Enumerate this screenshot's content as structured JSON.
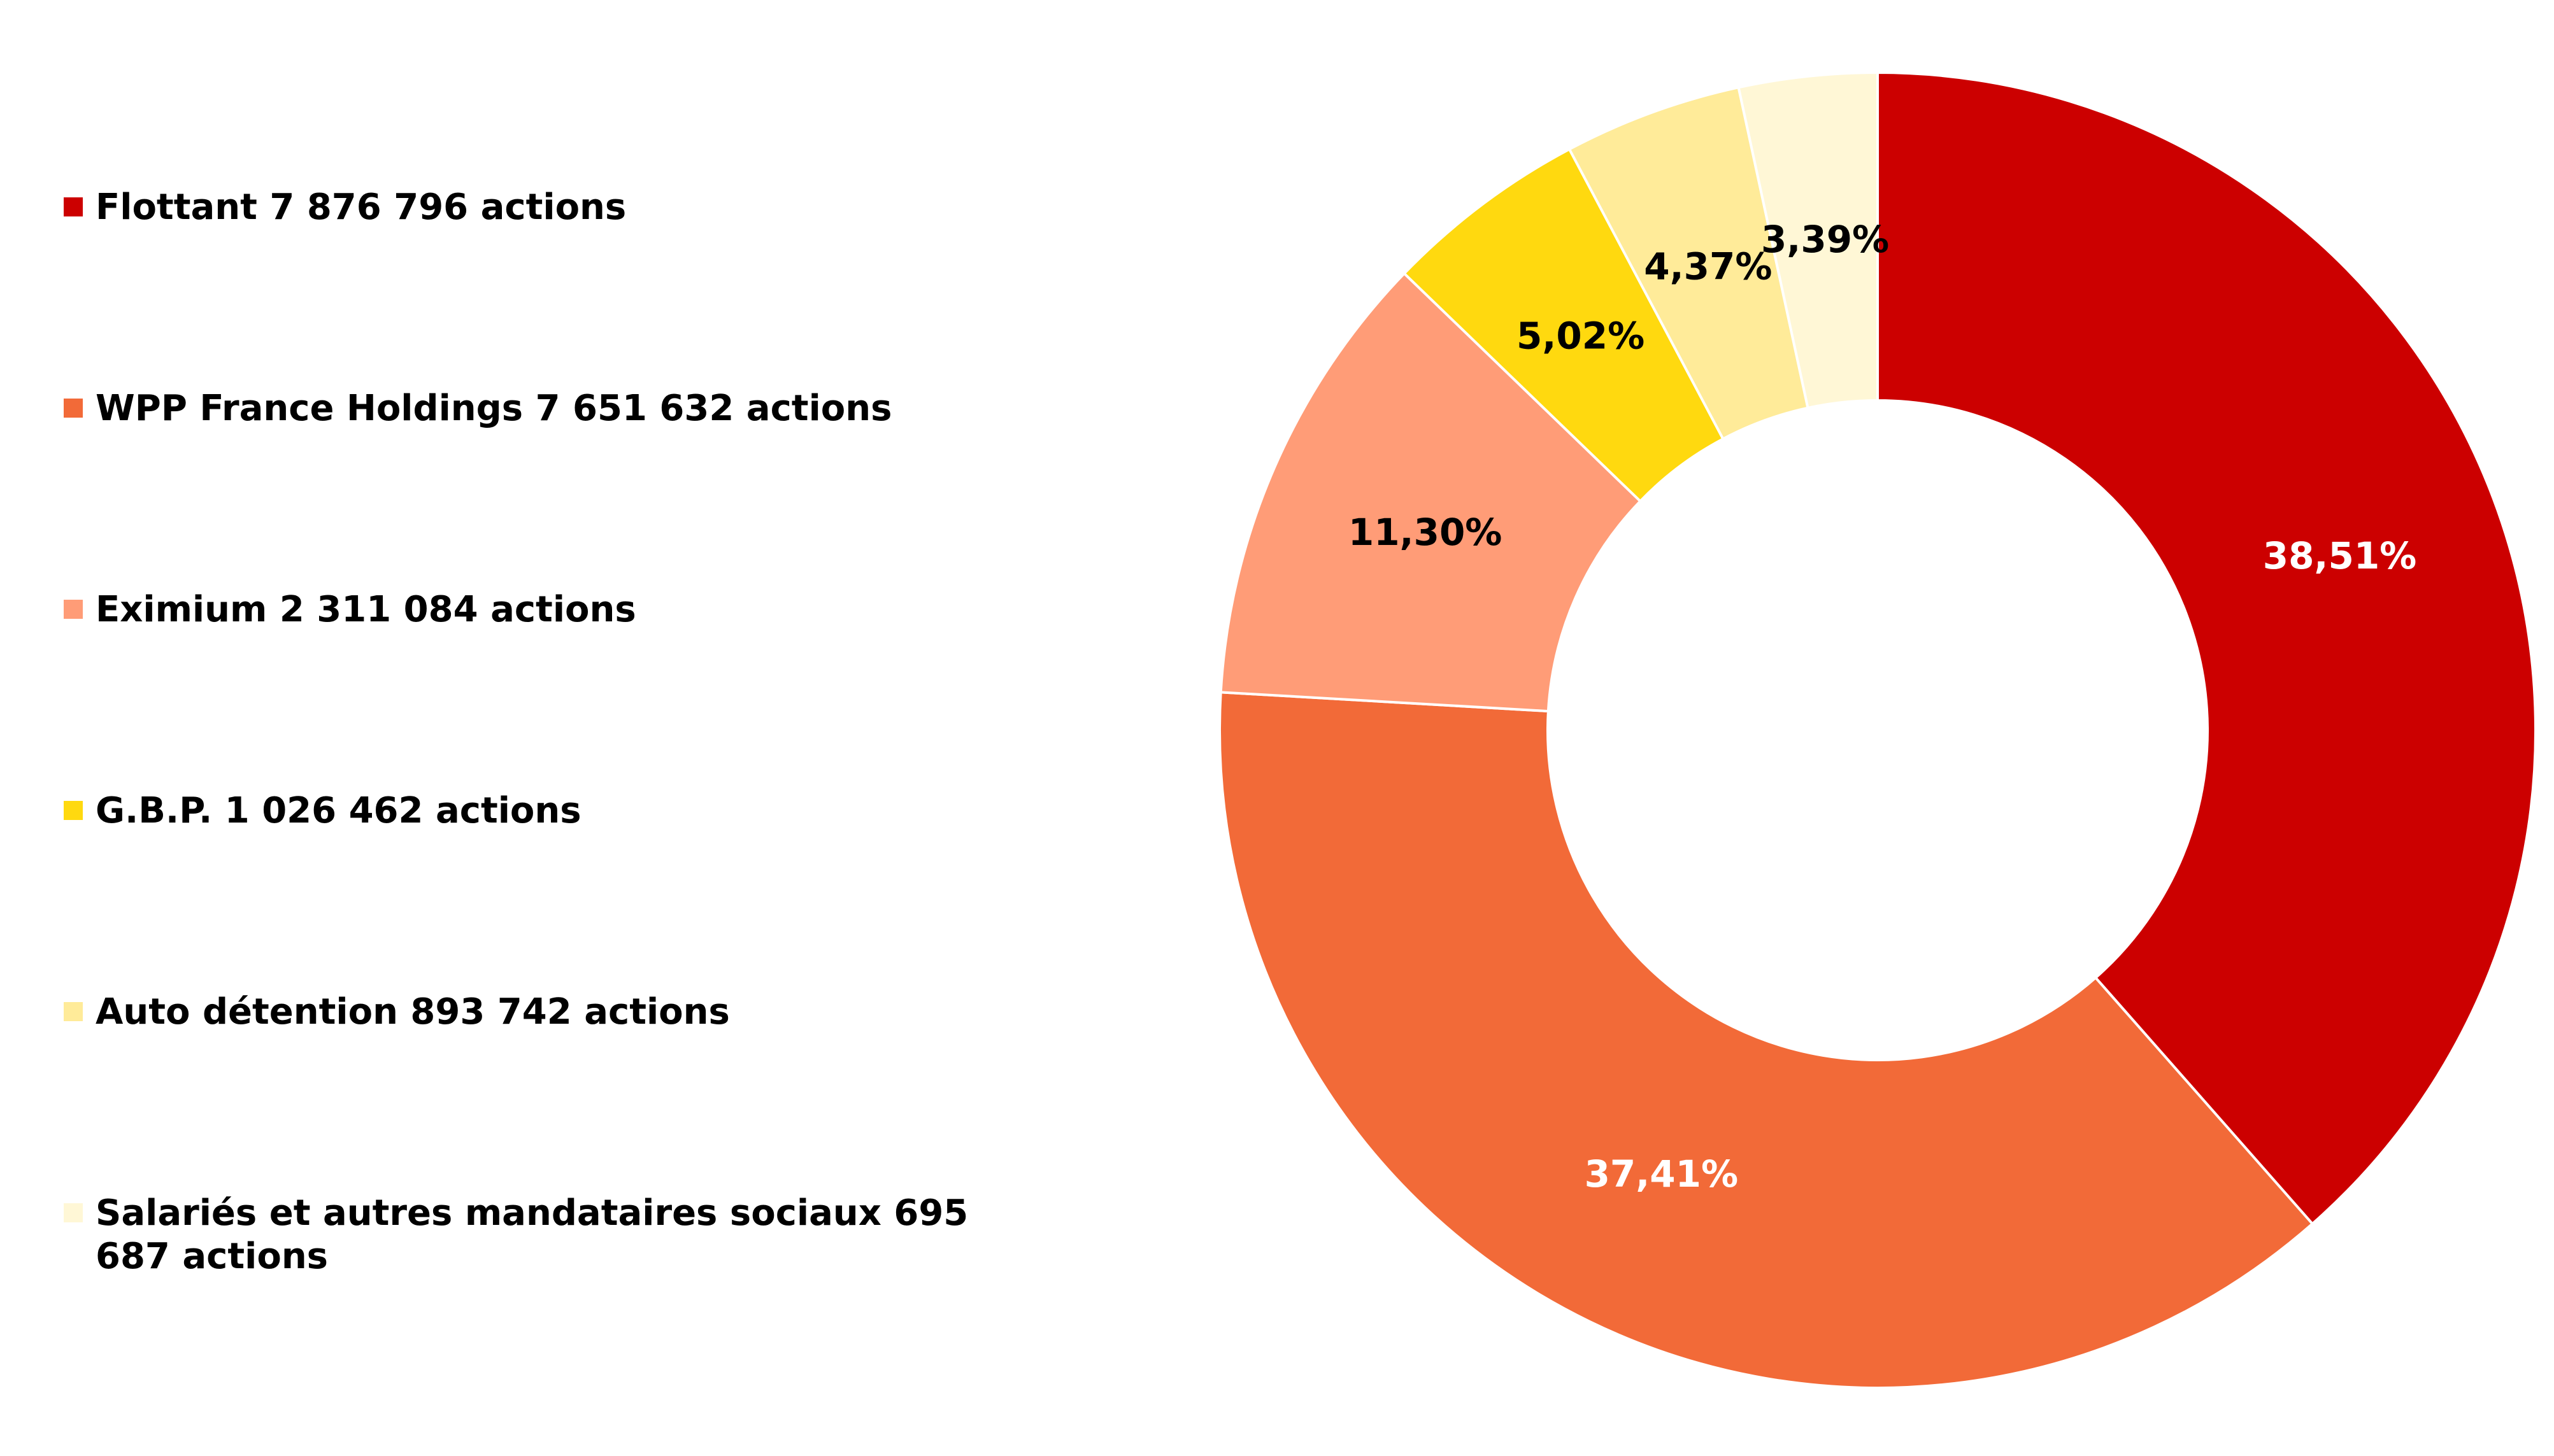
{
  "chart_data": {
    "type": "pie",
    "title": "",
    "categories": [
      "Flottant 7 876 796 actions",
      "WPP France Holdings 7 651 632 actions",
      "Eximium 2 311 084 actions",
      "G.B.P. 1 026 462 actions",
      "Auto détention 893 742 actions",
      "Salariés et autres mandataires sociaux 695 687 actions"
    ],
    "values": [
      38.51,
      37.41,
      11.3,
      5.02,
      4.37,
      3.39
    ],
    "data_labels": [
      "38,51%",
      "37,41%",
      "11,30%",
      "5,02%",
      "4,37%",
      "3,39%"
    ],
    "colors": [
      "#cc0000",
      "#f26a38",
      "#ff9c77",
      "#ffd90f",
      "#ffeb99",
      "#fff7d6"
    ],
    "label_colors": [
      "#ffffff",
      "#ffffff",
      "#000000",
      "#000000",
      "#000000",
      "#000000"
    ],
    "legend_position": "left",
    "donut": true
  }
}
